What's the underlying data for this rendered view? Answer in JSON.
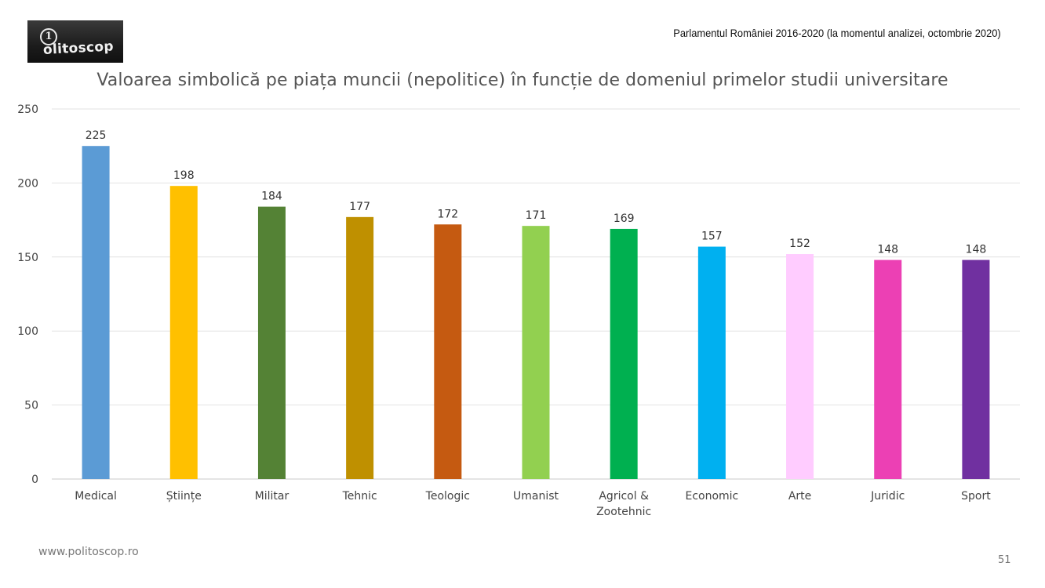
{
  "logo": {
    "text": "olitoscop"
  },
  "header_note": "Parlamentul României 2016-2020 (la momentul analizei, octombrie 2020)",
  "footer": {
    "url": "www.politoscop.ro",
    "page_number": "51"
  },
  "chart_data": {
    "type": "bar",
    "title": "Valoarea simbolică pe piața muncii (nepolitice) în funcție de domeniul primelor studii universitare",
    "xlabel": "",
    "ylabel": "",
    "ylim": [
      0,
      250
    ],
    "yticks": [
      0,
      50,
      100,
      150,
      200,
      250
    ],
    "grid": true,
    "categories": [
      "Medical",
      "Științe",
      "Militar",
      "Tehnic",
      "Teologic",
      "Umanist",
      "Agricol & Zootehnic",
      "Economic",
      "Arte",
      "Juridic",
      "Sport"
    ],
    "category_lines": [
      [
        "Medical"
      ],
      [
        "Științe"
      ],
      [
        "Militar"
      ],
      [
        "Tehnic"
      ],
      [
        "Teologic"
      ],
      [
        "Umanist"
      ],
      [
        "Agricol &",
        "Zootehnic"
      ],
      [
        "Economic"
      ],
      [
        "Arte"
      ],
      [
        "Juridic"
      ],
      [
        "Sport"
      ]
    ],
    "values": [
      225,
      198,
      184,
      177,
      172,
      171,
      169,
      157,
      152,
      148,
      148
    ],
    "colors": [
      "#5b9bd5",
      "#ffc000",
      "#548235",
      "#bf9000",
      "#c55a11",
      "#92d050",
      "#00b050",
      "#00b0f0",
      "#ffccff",
      "#ec40b4",
      "#7030a0"
    ],
    "data_labels": true
  }
}
